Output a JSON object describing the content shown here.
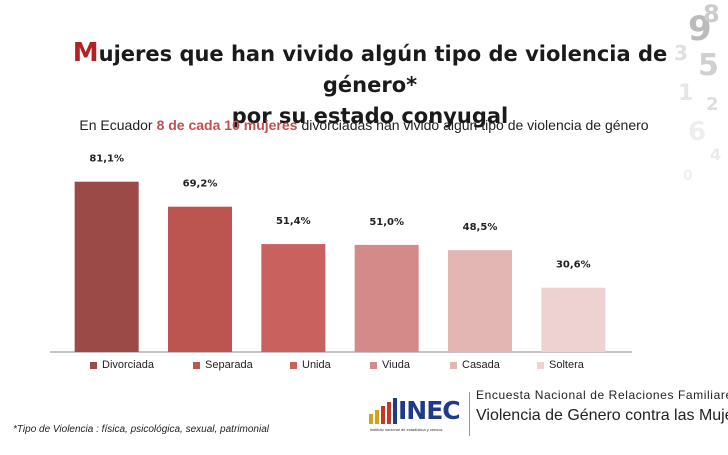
{
  "title": {
    "first_letter": "M",
    "line1_rest": "ujeres que han vivido algún tipo de violencia de género*",
    "line2": "por su estado conyugal"
  },
  "subtitle": {
    "prefix": "En Ecuador",
    "highlight": "8 de cada 10 mujeres",
    "suffix": "divorciadas han vivido algún tipo de violencia de género"
  },
  "chart_data": {
    "type": "bar",
    "categories": [
      "Divorciada",
      "Separada",
      "Unida",
      "Viuda",
      "Casada",
      "Soltera"
    ],
    "values": [
      81.1,
      69.2,
      51.4,
      51.0,
      48.5,
      30.6
    ],
    "value_labels": [
      "81,1%",
      "69,2%",
      "51,4%",
      "51,0%",
      "48,5%",
      "30,6%"
    ],
    "colors": [
      "#9c4a47",
      "#bc5450",
      "#c9625f",
      "#d48a88",
      "#e3b5b3",
      "#eed2d1"
    ],
    "ylim": [
      0,
      90
    ],
    "legend_position": "bottom",
    "grid": false
  },
  "footnote": "*Tipo de Violencia : física, psicológica, sexual, patrimonial",
  "logo": {
    "text": "INEC",
    "small_text": "instituto nacional de estadística y censos"
  },
  "survey": {
    "line1": "Encuesta Nacional de Relaciones Familiares y",
    "line2": "Violencia de Género contra las Mujeres"
  }
}
